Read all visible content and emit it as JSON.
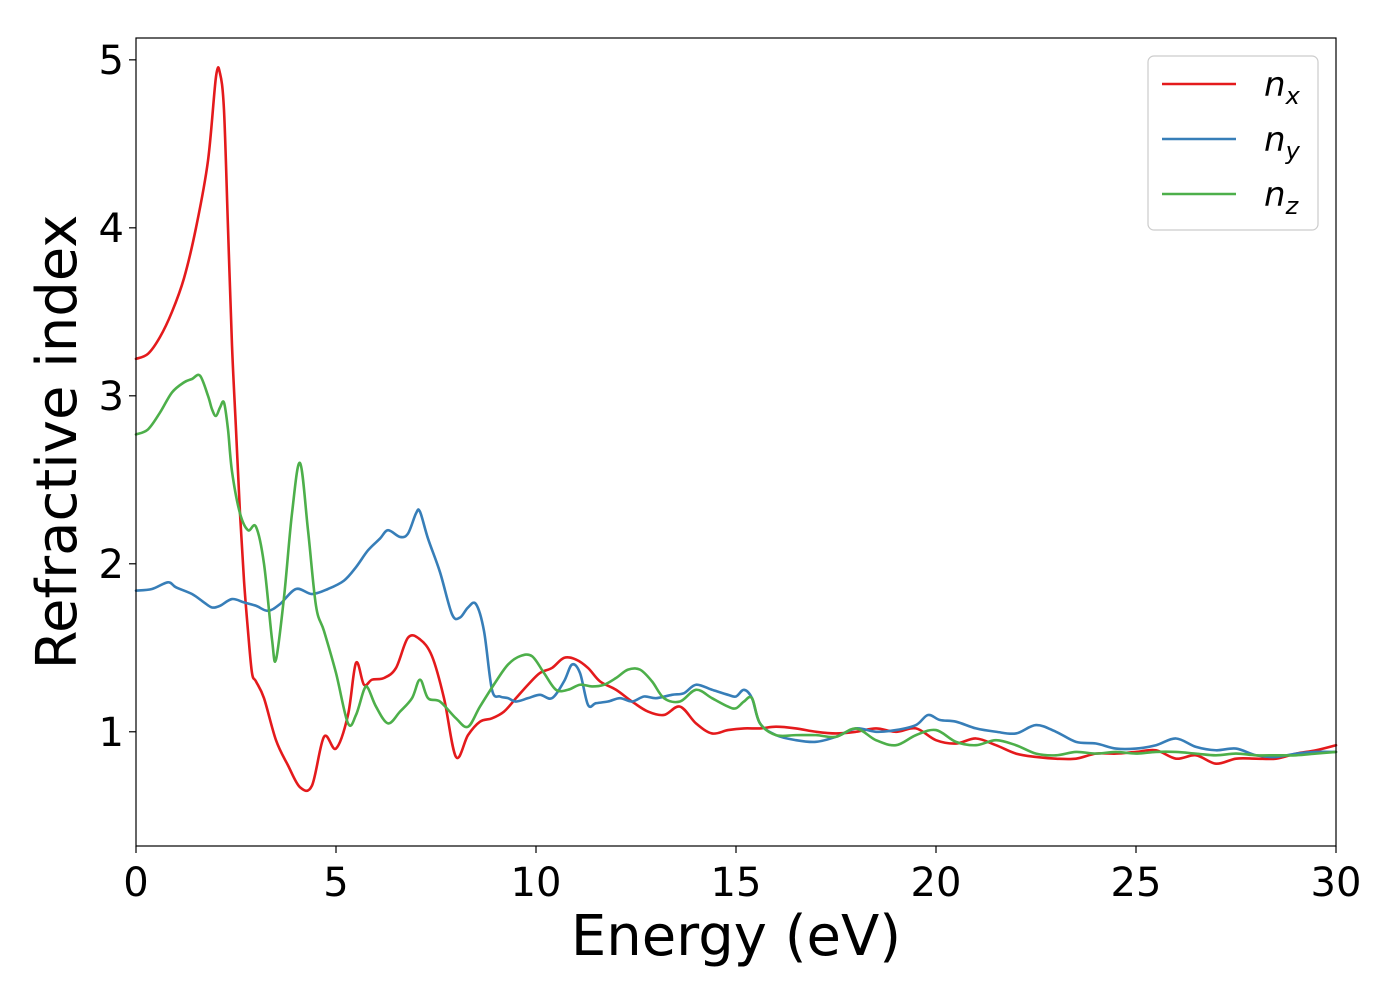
{
  "chart_data": {
    "type": "line",
    "xlabel": "Energy (eV)",
    "ylabel": "Refractive index",
    "xlim": [
      0,
      30
    ],
    "ylim": [
      0.32,
      5.13
    ],
    "xticks": [
      0,
      5,
      10,
      15,
      20,
      25,
      30
    ],
    "yticks": [
      1,
      2,
      3,
      4,
      5
    ],
    "grid": false,
    "legend_position": "top-right",
    "series": [
      {
        "name": "n",
        "subscript": "x",
        "color": "#e41a1c",
        "x": [
          0,
          0.3,
          0.6,
          0.9,
          1.2,
          1.5,
          1.8,
          2.0,
          2.1,
          2.2,
          2.3,
          2.4,
          2.5,
          2.6,
          2.7,
          2.8,
          2.9,
          3.0,
          3.2,
          3.5,
          3.8,
          4.1,
          4.4,
          4.7,
          5.0,
          5.3,
          5.5,
          5.7,
          5.9,
          6.2,
          6.5,
          6.8,
          7.1,
          7.4,
          7.7,
          8.0,
          8.3,
          8.6,
          8.9,
          9.2,
          9.5,
          9.8,
          10.1,
          10.4,
          10.7,
          11.0,
          11.3,
          11.6,
          12.0,
          12.4,
          12.8,
          13.2,
          13.6,
          14.0,
          14.4,
          14.8,
          15.2,
          15.6,
          16.0,
          16.5,
          17.0,
          17.5,
          18.0,
          18.5,
          19.0,
          19.5,
          20.0,
          20.5,
          21.0,
          21.5,
          22.0,
          22.5,
          23.0,
          23.5,
          24.0,
          24.5,
          25.0,
          25.5,
          26.0,
          26.5,
          27.0,
          27.5,
          28.0,
          28.5,
          29.0,
          29.5,
          30.0
        ],
        "y": [
          3.22,
          3.25,
          3.35,
          3.5,
          3.7,
          4.0,
          4.4,
          4.9,
          4.92,
          4.7,
          4.0,
          3.3,
          2.8,
          2.3,
          1.9,
          1.6,
          1.35,
          1.3,
          1.2,
          0.95,
          0.8,
          0.67,
          0.68,
          0.97,
          0.9,
          1.1,
          1.41,
          1.28,
          1.31,
          1.32,
          1.38,
          1.56,
          1.55,
          1.45,
          1.2,
          0.85,
          0.98,
          1.06,
          1.08,
          1.12,
          1.2,
          1.28,
          1.35,
          1.38,
          1.44,
          1.43,
          1.38,
          1.3,
          1.25,
          1.18,
          1.12,
          1.1,
          1.15,
          1.05,
          0.99,
          1.01,
          1.02,
          1.02,
          1.03,
          1.02,
          1.0,
          0.99,
          1.0,
          1.02,
          1.0,
          1.02,
          0.95,
          0.93,
          0.96,
          0.92,
          0.87,
          0.85,
          0.84,
          0.84,
          0.87,
          0.87,
          0.88,
          0.89,
          0.84,
          0.86,
          0.81,
          0.84,
          0.84,
          0.84,
          0.87,
          0.89,
          0.92
        ]
      },
      {
        "name": "n",
        "subscript": "y",
        "color": "#377eb8",
        "x": [
          0,
          0.4,
          0.8,
          1.0,
          1.4,
          1.7,
          1.9,
          2.1,
          2.4,
          2.7,
          3.0,
          3.3,
          3.6,
          4.0,
          4.4,
          4.8,
          5.2,
          5.5,
          5.8,
          6.1,
          6.3,
          6.6,
          6.8,
          7.0,
          7.1,
          7.3,
          7.6,
          7.9,
          8.1,
          8.3,
          8.5,
          8.7,
          8.9,
          9.1,
          9.3,
          9.5,
          9.8,
          10.1,
          10.4,
          10.7,
          10.9,
          11.1,
          11.3,
          11.5,
          11.8,
          12.1,
          12.4,
          12.7,
          13.0,
          13.4,
          13.7,
          14.0,
          14.4,
          14.8,
          15.0,
          15.2,
          15.4,
          15.6,
          16.0,
          16.5,
          17.0,
          17.5,
          18.0,
          18.5,
          19.0,
          19.5,
          19.8,
          20.1,
          20.5,
          21.0,
          21.5,
          22.0,
          22.5,
          23.0,
          23.5,
          24.0,
          24.5,
          25.0,
          25.5,
          26.0,
          26.5,
          27.0,
          27.5,
          28.0,
          28.5,
          29.0,
          29.5,
          30.0
        ],
        "y": [
          1.84,
          1.85,
          1.89,
          1.86,
          1.82,
          1.77,
          1.74,
          1.75,
          1.79,
          1.77,
          1.75,
          1.72,
          1.76,
          1.85,
          1.82,
          1.85,
          1.9,
          1.98,
          2.08,
          2.15,
          2.2,
          2.16,
          2.18,
          2.3,
          2.31,
          2.15,
          1.95,
          1.7,
          1.68,
          1.74,
          1.76,
          1.6,
          1.25,
          1.21,
          1.2,
          1.18,
          1.2,
          1.22,
          1.2,
          1.3,
          1.4,
          1.35,
          1.16,
          1.17,
          1.18,
          1.2,
          1.18,
          1.21,
          1.2,
          1.22,
          1.23,
          1.28,
          1.25,
          1.22,
          1.21,
          1.25,
          1.2,
          1.05,
          0.98,
          0.95,
          0.94,
          0.97,
          1.02,
          1.0,
          1.01,
          1.04,
          1.1,
          1.07,
          1.06,
          1.02,
          1.0,
          0.99,
          1.04,
          1.0,
          0.94,
          0.93,
          0.9,
          0.9,
          0.92,
          0.96,
          0.91,
          0.89,
          0.9,
          0.86,
          0.85,
          0.87,
          0.88,
          0.88
        ]
      },
      {
        "name": "n",
        "subscript": "z",
        "color": "#4daf4a",
        "x": [
          0,
          0.3,
          0.6,
          0.9,
          1.2,
          1.4,
          1.6,
          1.8,
          1.9,
          2.0,
          2.1,
          2.2,
          2.3,
          2.4,
          2.6,
          2.8,
          3.0,
          3.2,
          3.4,
          3.5,
          3.7,
          3.9,
          4.1,
          4.3,
          4.5,
          4.7,
          5.0,
          5.3,
          5.5,
          5.7,
          5.8,
          6.0,
          6.3,
          6.6,
          6.9,
          7.1,
          7.3,
          7.6,
          8.0,
          8.3,
          8.6,
          9.0,
          9.3,
          9.6,
          9.9,
          10.2,
          10.5,
          10.8,
          11.1,
          11.4,
          11.7,
          12.0,
          12.3,
          12.6,
          12.9,
          13.2,
          13.6,
          14.0,
          14.4,
          14.8,
          15.0,
          15.2,
          15.4,
          15.6,
          16.0,
          16.5,
          17.0,
          17.5,
          18.0,
          18.5,
          19.0,
          19.5,
          20.0,
          20.5,
          21.0,
          21.5,
          22.0,
          22.5,
          23.0,
          23.5,
          24.0,
          24.5,
          25.0,
          25.5,
          26.0,
          26.5,
          27.0,
          27.5,
          28.0,
          28.5,
          29.0,
          29.5,
          30.0
        ],
        "y": [
          2.77,
          2.8,
          2.9,
          3.02,
          3.08,
          3.1,
          3.12,
          3.0,
          2.92,
          2.88,
          2.93,
          2.96,
          2.8,
          2.55,
          2.3,
          2.2,
          2.22,
          2.0,
          1.55,
          1.43,
          1.8,
          2.3,
          2.6,
          2.2,
          1.75,
          1.6,
          1.35,
          1.05,
          1.1,
          1.25,
          1.26,
          1.15,
          1.05,
          1.12,
          1.2,
          1.31,
          1.2,
          1.18,
          1.08,
          1.03,
          1.15,
          1.3,
          1.4,
          1.45,
          1.45,
          1.35,
          1.25,
          1.25,
          1.28,
          1.27,
          1.28,
          1.32,
          1.37,
          1.37,
          1.3,
          1.2,
          1.18,
          1.25,
          1.2,
          1.15,
          1.14,
          1.18,
          1.2,
          1.05,
          0.98,
          0.98,
          0.98,
          0.97,
          1.02,
          0.95,
          0.92,
          0.98,
          1.01,
          0.94,
          0.92,
          0.95,
          0.92,
          0.87,
          0.86,
          0.88,
          0.87,
          0.88,
          0.87,
          0.88,
          0.88,
          0.87,
          0.86,
          0.87,
          0.86,
          0.86,
          0.86,
          0.87,
          0.88
        ]
      }
    ]
  }
}
